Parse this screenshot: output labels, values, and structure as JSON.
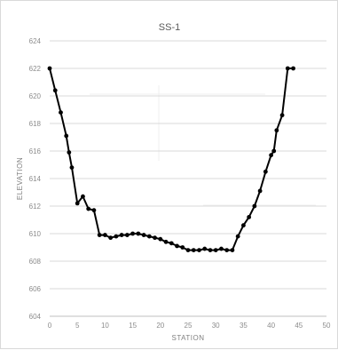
{
  "chart_data": {
    "type": "line",
    "title": "SS-1",
    "xlabel": "STATION",
    "ylabel": "ELEVATION",
    "xlim": [
      0,
      50
    ],
    "ylim": [
      604,
      624
    ],
    "xticks": [
      "0",
      "5",
      "10",
      "15",
      "20",
      "25",
      "30",
      "35",
      "40",
      "45",
      "50"
    ],
    "yticks": [
      "624",
      "622",
      "620",
      "618",
      "616",
      "614",
      "612",
      "610",
      "608",
      "606",
      "604"
    ],
    "grid": "horizontal",
    "series": [
      {
        "name": "",
        "color": "#000000",
        "x": [
          0,
          1,
          2,
          3,
          3.5,
          4,
          5,
          6,
          7,
          8,
          9,
          10,
          11,
          12,
          13,
          14,
          15,
          16,
          17,
          18,
          19,
          20,
          21,
          22,
          23,
          24,
          25,
          26,
          27,
          28,
          29,
          30,
          31,
          32,
          33,
          34,
          35,
          36,
          37,
          38,
          39,
          40,
          40.5,
          41,
          42,
          43,
          44
        ],
        "y": [
          622,
          620.4,
          618.8,
          617.1,
          615.9,
          614.8,
          612.2,
          612.7,
          611.8,
          611.7,
          609.9,
          609.9,
          609.7,
          609.8,
          609.9,
          609.9,
          610,
          610,
          609.9,
          609.8,
          609.7,
          609.6,
          609.4,
          609.3,
          609.1,
          609,
          608.8,
          608.8,
          608.8,
          608.9,
          608.8,
          608.8,
          608.9,
          608.8,
          608.8,
          609.8,
          610.6,
          611.2,
          612,
          613.1,
          614.5,
          615.7,
          616,
          617.5,
          618.6,
          622,
          622
        ]
      }
    ]
  }
}
